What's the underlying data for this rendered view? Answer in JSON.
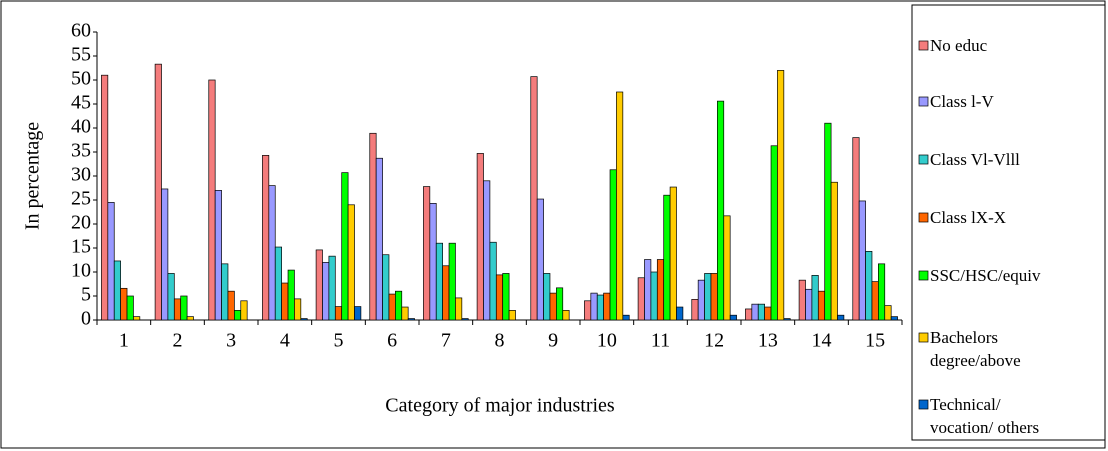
{
  "chart_data": {
    "type": "bar",
    "x_label": "Category of major industries",
    "y_label": "In percentage",
    "categories": [
      "1",
      "2",
      "3",
      "4",
      "5",
      "6",
      "7",
      "8",
      "9",
      "10",
      "11",
      "12",
      "13",
      "14",
      "15"
    ],
    "series": [
      {
        "name": "No educ",
        "color": "#f47c7c",
        "values": [
          51,
          53.3,
          50,
          34.3,
          14.6,
          38.9,
          27.8,
          34.7,
          50.7,
          4,
          8.8,
          4.3,
          2.3,
          8.3,
          38
        ]
      },
      {
        "name": "Class l-V",
        "color": "#9999ff",
        "values": [
          24.5,
          27.3,
          27,
          28,
          12,
          33.7,
          24.3,
          29,
          25.2,
          5.6,
          12.6,
          8.3,
          3.3,
          6.4,
          24.8
        ]
      },
      {
        "name": "Class Vl-Vlll",
        "color": "#33cccc",
        "values": [
          12.3,
          9.7,
          11.7,
          15.2,
          13.3,
          13.6,
          16,
          16.2,
          9.7,
          5.2,
          10,
          9.7,
          3.3,
          9.3,
          14.3
        ]
      },
      {
        "name": "Class lX-X",
        "color": "#ff6600",
        "values": [
          6.6,
          4.4,
          6,
          7.7,
          2.8,
          5.4,
          11.3,
          9.4,
          5.6,
          5.6,
          12.6,
          9.7,
          2.7,
          6,
          8
        ]
      },
      {
        "name": "SSC/HSC/equiv",
        "color": "#00ff00",
        "values": [
          5,
          5,
          2,
          10.4,
          30.7,
          6,
          16,
          9.7,
          6.7,
          31.3,
          26,
          45.6,
          36.3,
          41,
          11.7
        ]
      },
      {
        "name": "Bachelors degree/above",
        "color": "#ffcc00",
        "values": [
          0.7,
          0.7,
          4,
          4.4,
          24,
          2.7,
          4.6,
          2,
          2,
          47.5,
          27.7,
          21.7,
          52,
          28.7,
          3
        ]
      },
      {
        "name": "Technical/ vocation/ others",
        "color": "#0066cc",
        "values": [
          0,
          0,
          0,
          0.3,
          2.8,
          0.3,
          0.3,
          0,
          0,
          1,
          2.7,
          1,
          0.3,
          1,
          0.7
        ]
      }
    ],
    "ylim": [
      0,
      60
    ],
    "yticks": [
      0,
      5,
      10,
      15,
      20,
      25,
      30,
      35,
      40,
      45,
      50,
      55,
      60
    ],
    "grid": false,
    "legend": "right"
  }
}
